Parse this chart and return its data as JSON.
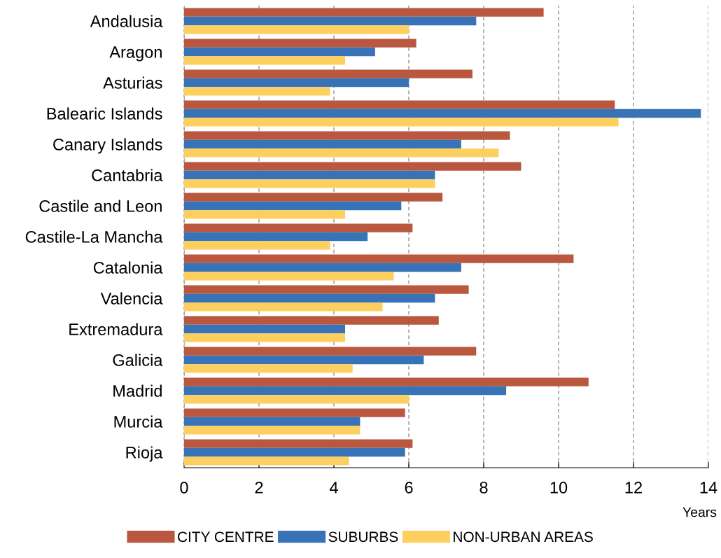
{
  "chart_data": {
    "type": "bar",
    "orientation": "horizontal",
    "xlabel": "Years",
    "categories": [
      "Andalusia",
      "Aragon",
      "Asturias",
      "Balearic Islands",
      "Canary Islands",
      "Cantabria",
      "Castile and Leon",
      "Castile-La Mancha",
      "Catalonia",
      "Valencia",
      "Extremadura",
      "Galicia",
      "Madrid",
      "Murcia",
      "Rioja"
    ],
    "series": [
      {
        "name": "CITY CENTRE",
        "color": "#b9573f",
        "values": [
          9.6,
          6.2,
          7.7,
          11.5,
          8.7,
          9.0,
          6.9,
          6.1,
          10.4,
          7.6,
          6.8,
          7.8,
          10.8,
          5.9,
          6.1
        ]
      },
      {
        "name": "SUBURBS",
        "color": "#3873b8",
        "values": [
          7.8,
          5.1,
          6.0,
          13.8,
          7.4,
          6.7,
          5.8,
          4.9,
          7.4,
          6.7,
          4.3,
          6.4,
          8.6,
          4.7,
          5.9
        ]
      },
      {
        "name": "NON-URBAN AREAS",
        "color": "#fdcf5f",
        "values": [
          6.0,
          4.3,
          3.9,
          11.6,
          8.4,
          6.7,
          4.3,
          3.9,
          5.6,
          5.3,
          4.3,
          4.5,
          6.0,
          4.7,
          4.4
        ]
      }
    ],
    "xlim": [
      0,
      14
    ],
    "xticks": [
      0,
      2,
      4,
      6,
      8,
      10,
      12,
      14
    ],
    "grid": "x",
    "legend": "bottom"
  }
}
